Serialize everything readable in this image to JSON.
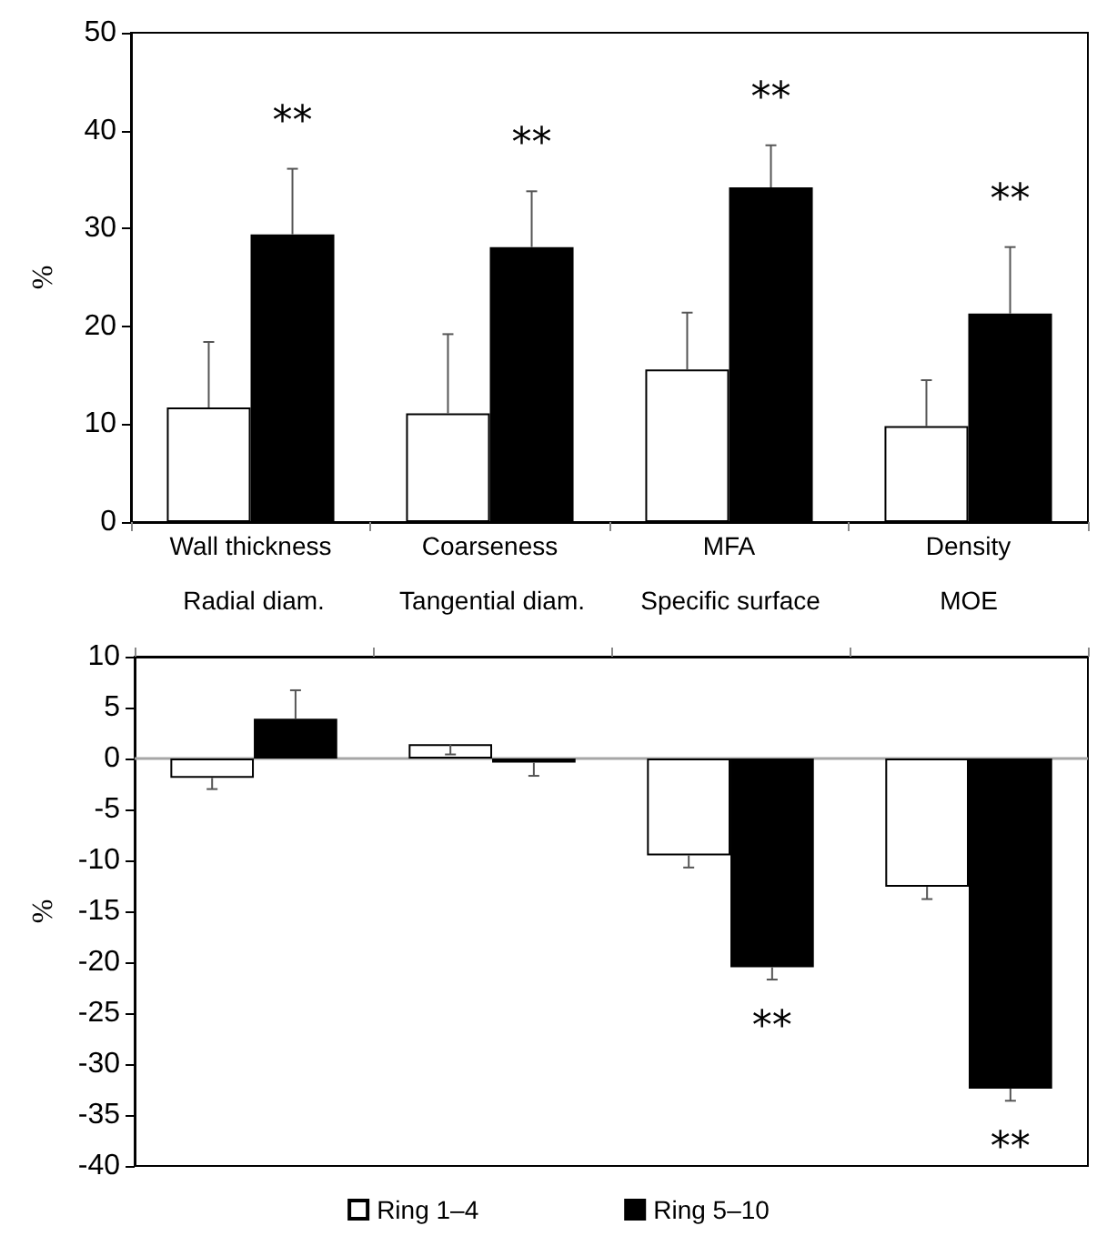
{
  "chart_data": [
    {
      "type": "bar",
      "ylabel": "%",
      "categories": [
        "Wall thickness",
        "Coarseness",
        "MFA",
        "Density"
      ],
      "ylim": [
        0,
        50
      ],
      "yticks": [
        0,
        10,
        20,
        30,
        40,
        50
      ],
      "grid": false,
      "legend": false,
      "series": [
        {
          "color": "#ffffff",
          "values": [
            11.7,
            11.1,
            15.6,
            9.8
          ],
          "errors": [
            [
              11.7,
              18.4
            ],
            [
              11.1,
              19.2
            ],
            [
              15.6,
              21.4
            ],
            [
              9.8,
              14.5
            ]
          ]
        },
        {
          "color": "#000000",
          "values": [
            29.4,
            28.1,
            34.2,
            21.3
          ],
          "errors": [
            [
              29.4,
              36.1
            ],
            [
              28.1,
              33.8
            ],
            [
              34.2,
              38.5
            ],
            [
              21.3,
              28.1
            ]
          ]
        }
      ],
      "annotations": [
        "**",
        "**",
        "**",
        "**"
      ]
    },
    {
      "type": "bar",
      "ylabel": "%",
      "categories": [
        "Radial diam.",
        "Tangential diam.",
        "Specific surface",
        "MOE"
      ],
      "ylim": [
        -40,
        10
      ],
      "yticks": [
        -40,
        -35,
        -30,
        -25,
        -20,
        -15,
        -10,
        -5,
        0,
        5,
        10
      ],
      "grid": false,
      "legend": "bottom",
      "ref_lines": [
        {
          "axis": "y",
          "value": 0,
          "color": "#a6a6a6"
        }
      ],
      "series": [
        {
          "name": "Ring 1–4",
          "color": "#ffffff",
          "values": [
            -1.9,
            1.4,
            -9.5,
            -12.6
          ],
          "errors": [
            [
              -3.0,
              -1.9
            ],
            [
              0.4,
              1.4
            ],
            [
              -10.7,
              -9.5
            ],
            [
              -13.8,
              -12.6
            ]
          ]
        },
        {
          "name": "Ring 5–10",
          "color": "#000000",
          "values": [
            3.9,
            -0.4,
            -20.5,
            -32.4
          ],
          "errors": [
            [
              3.9,
              6.7
            ],
            [
              -1.7,
              -0.4
            ],
            [
              -21.7,
              -20.5
            ],
            [
              -33.6,
              -32.4
            ]
          ]
        }
      ],
      "annotations": [
        "**",
        "**"
      ]
    }
  ]
}
